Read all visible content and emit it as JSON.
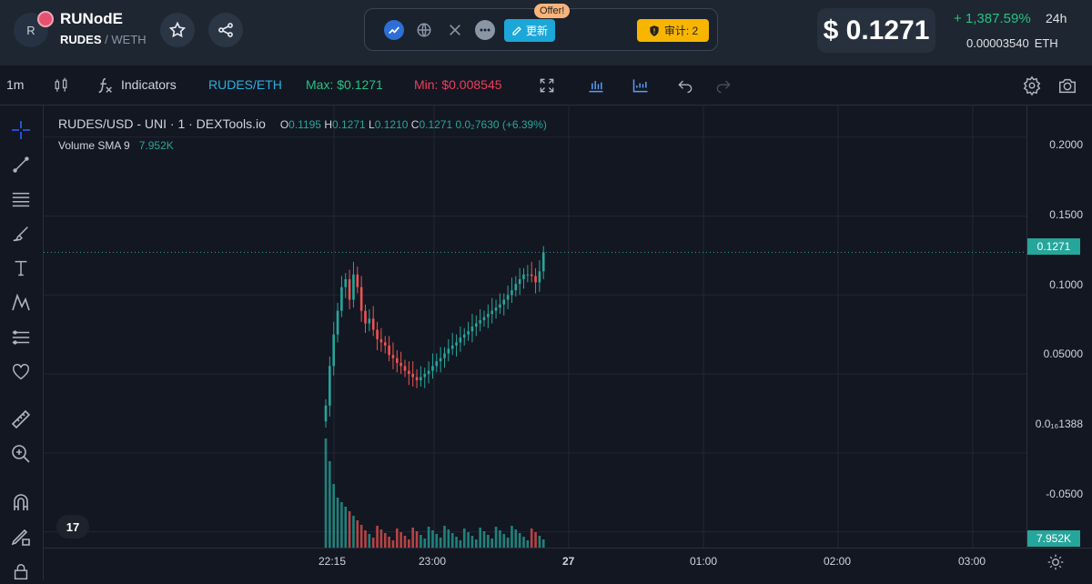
{
  "header": {
    "avatar_letter": "R",
    "token_name": "RUNodE",
    "base": "RUDES",
    "separator": "/",
    "quote": "WETH",
    "offer_badge": "Offer!",
    "update_label": "更新",
    "audit_label": "审计: 2",
    "price_usd": "$ 0.1271",
    "change_pct": "+ 1,387.59%",
    "change_period": "24h",
    "price_eth": "0.00003540",
    "price_eth_unit": "ETH"
  },
  "toolbar": {
    "interval": "1m",
    "indicators_label": "Indicators",
    "pair_label": "RUDES/ETH",
    "max_label": "Max: $0.1271",
    "min_label": "Min: $0.008545"
  },
  "chart": {
    "legend_title": "RUDES/USD - UNI · 1 · DEXTools.io",
    "ohlc": {
      "o_key": "O",
      "o": "0.1195",
      "h_key": "H",
      "h": "0.1271",
      "l_key": "L",
      "l": "0.1210",
      "c_key": "C",
      "c": "0.1271",
      "change": "0.0₂7630 (+6.39%)"
    },
    "volume_label": "Volume SMA 9",
    "volume_value": "7.952K",
    "price_ticks": [
      "0.2000",
      "0.1500",
      "0.1000",
      "0.05000",
      "0.0₁₆1388",
      "-0.0500"
    ],
    "current_price_badge": "0.1271",
    "volume_badge": "7.952K",
    "time_ticks": [
      "22:15",
      "23:00",
      "27",
      "01:00",
      "02:00",
      "03:00"
    ],
    "tv_logo": "17",
    "colors": {
      "up": "#26a69a",
      "down": "#ef5350",
      "bg": "#131722"
    }
  },
  "chart_data": {
    "type": "candlestick",
    "ylim": [
      -0.06,
      0.22
    ],
    "series": [
      {
        "name": "RUDES/USD",
        "values": [
          0.03,
          0.055,
          0.075,
          0.09,
          0.105,
          0.11,
          0.097,
          0.113,
          0.105,
          0.09,
          0.082,
          0.085,
          0.078,
          0.072,
          0.07,
          0.068,
          0.062,
          0.06,
          0.057,
          0.055,
          0.052,
          0.05,
          0.048,
          0.046,
          0.048,
          0.05,
          0.052,
          0.055,
          0.058,
          0.06,
          0.063,
          0.066,
          0.068,
          0.07,
          0.073,
          0.075,
          0.077,
          0.08,
          0.082,
          0.084,
          0.086,
          0.088,
          0.09,
          0.092,
          0.094,
          0.097,
          0.1,
          0.103,
          0.107,
          0.11,
          0.113,
          0.113,
          0.112,
          0.108,
          0.115,
          0.127
        ]
      }
    ]
  }
}
